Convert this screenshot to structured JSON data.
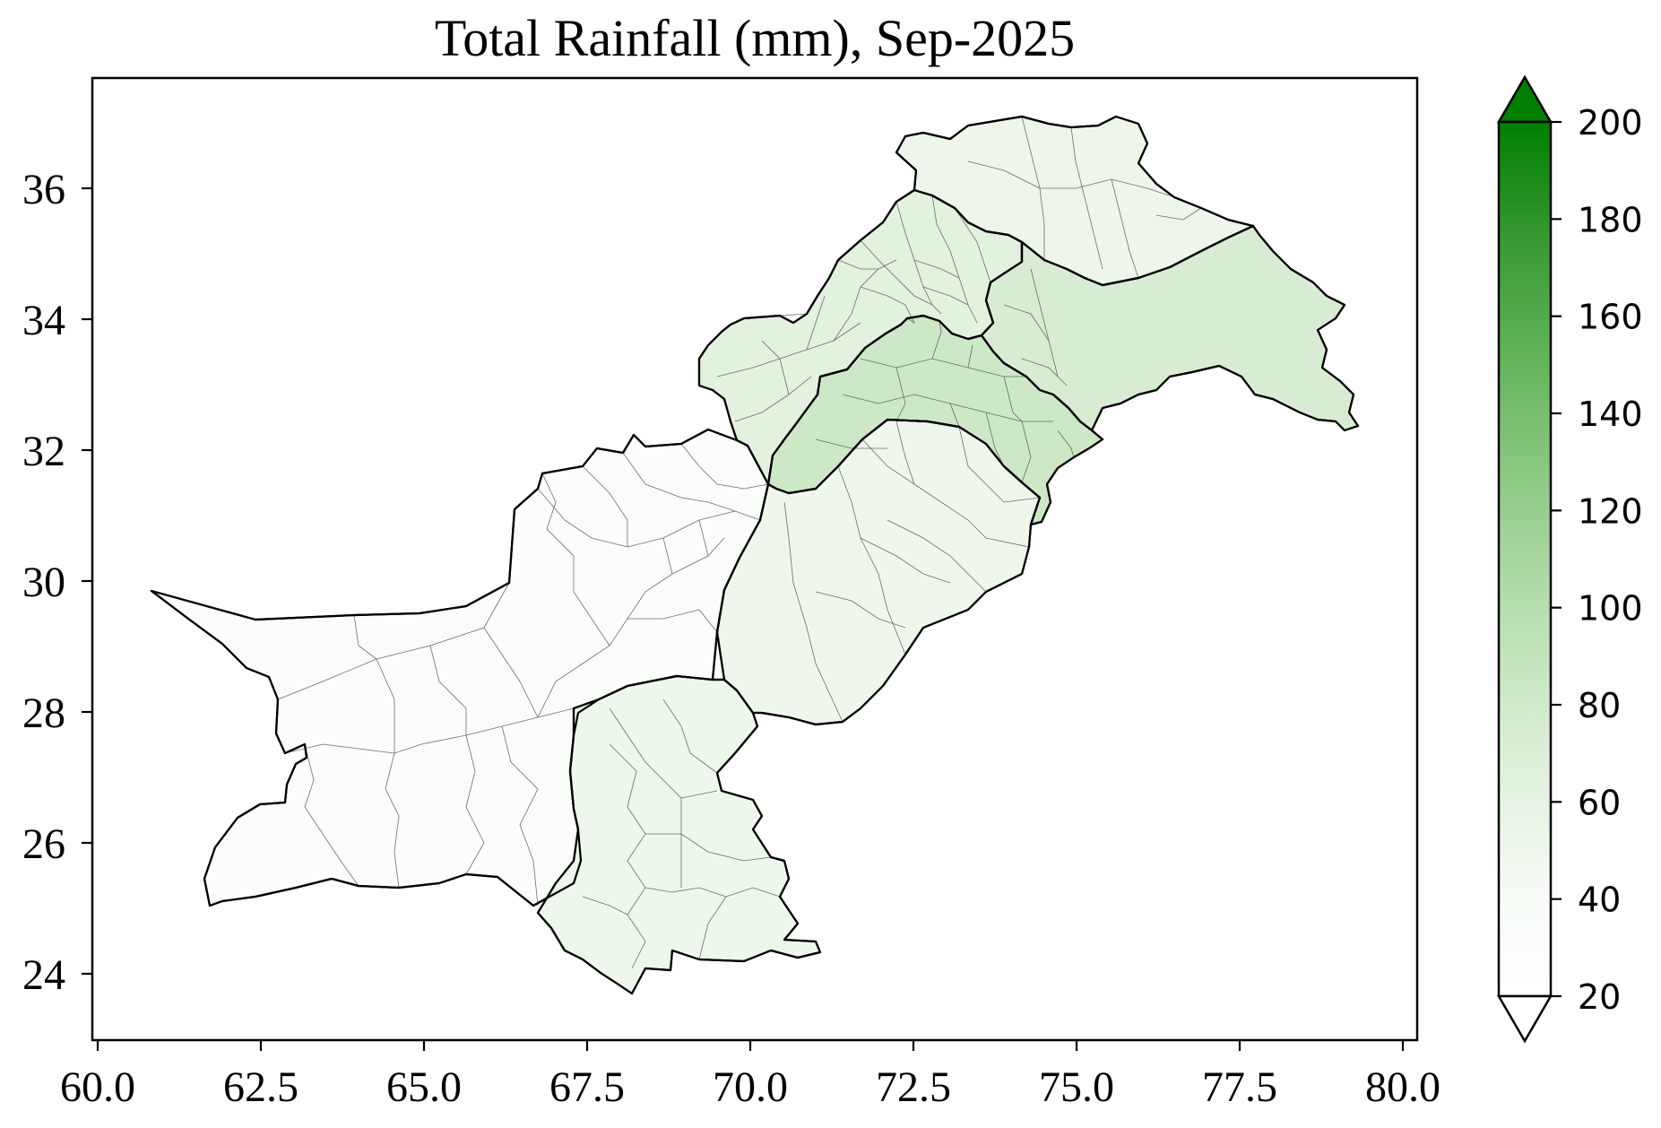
{
  "title": "Total Rainfall (mm),  Sep-2025",
  "map": {
    "x_ticks": [
      "60.0",
      "62.5",
      "65.0",
      "67.5",
      "70.0",
      "72.5",
      "75.0",
      "77.5",
      "80.0"
    ],
    "y_ticks": [
      "36",
      "34",
      "32",
      "30",
      "28",
      "26",
      "24"
    ]
  },
  "colorbar": {
    "ticks": [
      "200",
      "180",
      "160",
      "140",
      "120",
      "100",
      "80",
      "60",
      "40",
      "20"
    ],
    "colors": [
      "#ffffff",
      "#e8f4e6",
      "#c9e6c3",
      "#a4d59c",
      "#7ec174",
      "#55aa4f",
      "#2c9229",
      "#007f00"
    ]
  },
  "regions": {
    "balochistan": "#fbfdfa",
    "sindh": "#eef7ec",
    "south_punjab": "#eff7ed",
    "north_punjab": "#cde8c6",
    "kpk": "#e3f1df",
    "gilgit_baltistan": "#eef6ec",
    "kashmir": "#d8ecd3"
  }
}
